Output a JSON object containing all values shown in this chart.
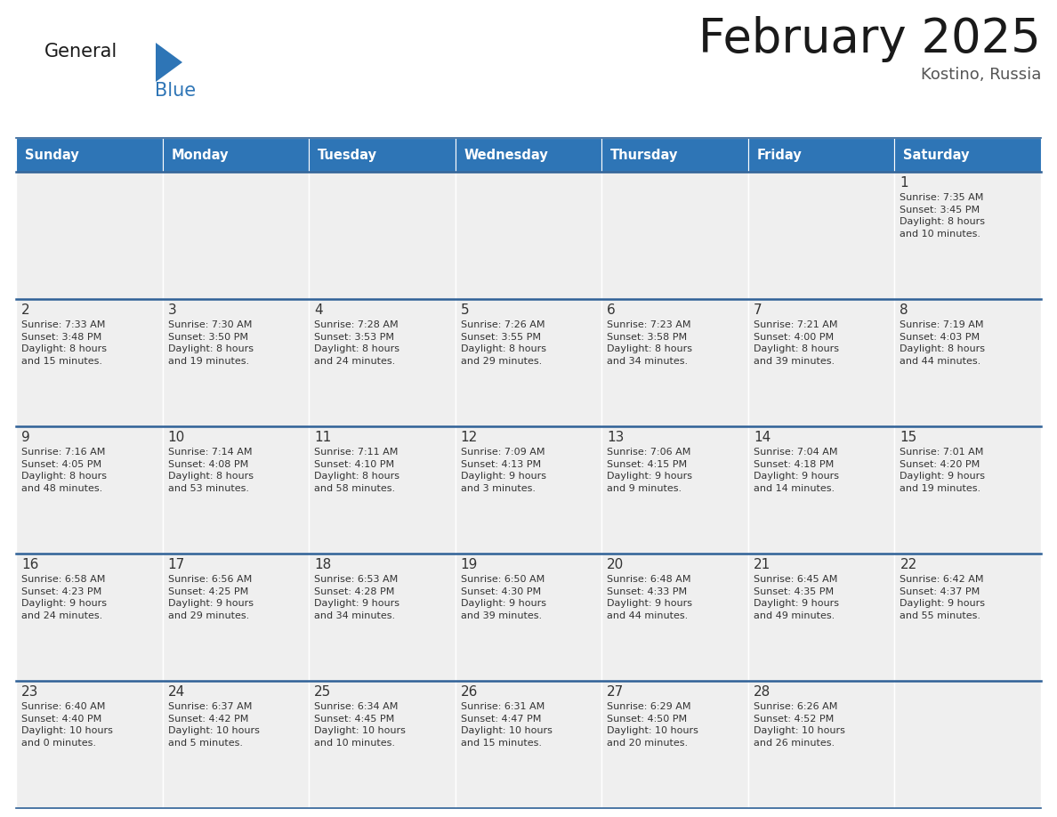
{
  "title": "February 2025",
  "subtitle": "Kostino, Russia",
  "days_of_week": [
    "Sunday",
    "Monday",
    "Tuesday",
    "Wednesday",
    "Thursday",
    "Friday",
    "Saturday"
  ],
  "header_bg": "#2E75B6",
  "header_text": "#FFFFFF",
  "cell_bg": "#EFEFEF",
  "day_number_color": "#333333",
  "info_text_color": "#333333",
  "border_color": "#2E6096",
  "separator_color": "#AAAAAA",
  "logo_general_color": "#1A1A1A",
  "logo_blue_color": "#2E75B6",
  "calendar_data": [
    [
      null,
      null,
      null,
      null,
      null,
      null,
      {
        "day": 1,
        "sunrise": "7:35 AM",
        "sunset": "3:45 PM",
        "daylight": "8 hours\nand 10 minutes."
      }
    ],
    [
      {
        "day": 2,
        "sunrise": "7:33 AM",
        "sunset": "3:48 PM",
        "daylight": "8 hours\nand 15 minutes."
      },
      {
        "day": 3,
        "sunrise": "7:30 AM",
        "sunset": "3:50 PM",
        "daylight": "8 hours\nand 19 minutes."
      },
      {
        "day": 4,
        "sunrise": "7:28 AM",
        "sunset": "3:53 PM",
        "daylight": "8 hours\nand 24 minutes."
      },
      {
        "day": 5,
        "sunrise": "7:26 AM",
        "sunset": "3:55 PM",
        "daylight": "8 hours\nand 29 minutes."
      },
      {
        "day": 6,
        "sunrise": "7:23 AM",
        "sunset": "3:58 PM",
        "daylight": "8 hours\nand 34 minutes."
      },
      {
        "day": 7,
        "sunrise": "7:21 AM",
        "sunset": "4:00 PM",
        "daylight": "8 hours\nand 39 minutes."
      },
      {
        "day": 8,
        "sunrise": "7:19 AM",
        "sunset": "4:03 PM",
        "daylight": "8 hours\nand 44 minutes."
      }
    ],
    [
      {
        "day": 9,
        "sunrise": "7:16 AM",
        "sunset": "4:05 PM",
        "daylight": "8 hours\nand 48 minutes."
      },
      {
        "day": 10,
        "sunrise": "7:14 AM",
        "sunset": "4:08 PM",
        "daylight": "8 hours\nand 53 minutes."
      },
      {
        "day": 11,
        "sunrise": "7:11 AM",
        "sunset": "4:10 PM",
        "daylight": "8 hours\nand 58 minutes."
      },
      {
        "day": 12,
        "sunrise": "7:09 AM",
        "sunset": "4:13 PM",
        "daylight": "9 hours\nand 3 minutes."
      },
      {
        "day": 13,
        "sunrise": "7:06 AM",
        "sunset": "4:15 PM",
        "daylight": "9 hours\nand 9 minutes."
      },
      {
        "day": 14,
        "sunrise": "7:04 AM",
        "sunset": "4:18 PM",
        "daylight": "9 hours\nand 14 minutes."
      },
      {
        "day": 15,
        "sunrise": "7:01 AM",
        "sunset": "4:20 PM",
        "daylight": "9 hours\nand 19 minutes."
      }
    ],
    [
      {
        "day": 16,
        "sunrise": "6:58 AM",
        "sunset": "4:23 PM",
        "daylight": "9 hours\nand 24 minutes."
      },
      {
        "day": 17,
        "sunrise": "6:56 AM",
        "sunset": "4:25 PM",
        "daylight": "9 hours\nand 29 minutes."
      },
      {
        "day": 18,
        "sunrise": "6:53 AM",
        "sunset": "4:28 PM",
        "daylight": "9 hours\nand 34 minutes."
      },
      {
        "day": 19,
        "sunrise": "6:50 AM",
        "sunset": "4:30 PM",
        "daylight": "9 hours\nand 39 minutes."
      },
      {
        "day": 20,
        "sunrise": "6:48 AM",
        "sunset": "4:33 PM",
        "daylight": "9 hours\nand 44 minutes."
      },
      {
        "day": 21,
        "sunrise": "6:45 AM",
        "sunset": "4:35 PM",
        "daylight": "9 hours\nand 49 minutes."
      },
      {
        "day": 22,
        "sunrise": "6:42 AM",
        "sunset": "4:37 PM",
        "daylight": "9 hours\nand 55 minutes."
      }
    ],
    [
      {
        "day": 23,
        "sunrise": "6:40 AM",
        "sunset": "4:40 PM",
        "daylight": "10 hours\nand 0 minutes."
      },
      {
        "day": 24,
        "sunrise": "6:37 AM",
        "sunset": "4:42 PM",
        "daylight": "10 hours\nand 5 minutes."
      },
      {
        "day": 25,
        "sunrise": "6:34 AM",
        "sunset": "4:45 PM",
        "daylight": "10 hours\nand 10 minutes."
      },
      {
        "day": 26,
        "sunrise": "6:31 AM",
        "sunset": "4:47 PM",
        "daylight": "10 hours\nand 15 minutes."
      },
      {
        "day": 27,
        "sunrise": "6:29 AM",
        "sunset": "4:50 PM",
        "daylight": "10 hours\nand 20 minutes."
      },
      {
        "day": 28,
        "sunrise": "6:26 AM",
        "sunset": "4:52 PM",
        "daylight": "10 hours\nand 26 minutes."
      },
      null
    ]
  ]
}
